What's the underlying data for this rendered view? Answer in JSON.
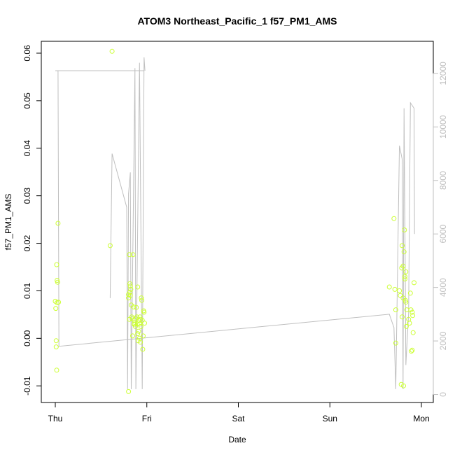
{
  "chart_data": {
    "type": "scatter",
    "title": "ATOM3 Northeast_Pacific_1 f57_PM1_AMS",
    "xlabel": "Date",
    "ylabel": "f57_PM1_AMS",
    "x_ticks": [
      "Thu",
      "Fri",
      "Sat",
      "Sun",
      "Mon"
    ],
    "xlim_days": [
      -0.2,
      4.1
    ],
    "ylim": [
      -0.0135,
      0.0625
    ],
    "y_ticks": [
      "-0.01",
      "0.00",
      "0.01",
      "0.02",
      "0.03",
      "0.04",
      "0.05",
      "0.06"
    ],
    "y_tick_values": [
      -0.01,
      0.0,
      0.01,
      0.02,
      0.03,
      0.04,
      0.05,
      0.06
    ],
    "y2lim": [
      -300,
      13200
    ],
    "y2_ticks": [
      "0",
      "2000",
      "4000",
      "6000",
      "8000",
      "10000",
      "12000"
    ],
    "y2_tick_values": [
      0,
      2000,
      4000,
      6000,
      8000,
      10000,
      12000
    ],
    "points_color": "#ccff33",
    "line_color": "#bfbfbf",
    "points": [
      [
        0.0,
        0.0078
      ],
      [
        0.005,
        0.0063
      ],
      [
        0.01,
        -0.0005
      ],
      [
        0.01,
        -0.0018
      ],
      [
        0.015,
        0.0155
      ],
      [
        0.02,
        0.0075
      ],
      [
        0.02,
        0.0122
      ],
      [
        0.025,
        0.0118
      ],
      [
        0.03,
        0.0242
      ],
      [
        0.035,
        0.0076
      ],
      [
        0.015,
        -0.0067
      ],
      [
        0.6,
        0.0195
      ],
      [
        0.62,
        0.0604
      ],
      [
        0.8,
        0.0092
      ],
      [
        0.8,
        0.0085
      ],
      [
        0.81,
        0.0176
      ],
      [
        0.81,
        0.004
      ],
      [
        0.815,
        0.0115
      ],
      [
        0.815,
        0.0097
      ],
      [
        0.82,
        0.009
      ],
      [
        0.82,
        0.011
      ],
      [
        0.825,
        0.0103
      ],
      [
        0.83,
        0.007
      ],
      [
        0.835,
        0.0045
      ],
      [
        0.84,
        0.0041
      ],
      [
        0.845,
        0.0005
      ],
      [
        0.85,
        0.0176
      ],
      [
        0.855,
        0.0066
      ],
      [
        0.86,
        0.003
      ],
      [
        0.865,
        0.0038
      ],
      [
        0.87,
        0.003
      ],
      [
        0.875,
        0.0025
      ],
      [
        0.88,
        0.0041
      ],
      [
        0.885,
        0.0065
      ],
      [
        0.89,
        0.0045
      ],
      [
        0.895,
        0.003
      ],
      [
        0.9,
        0.0108
      ],
      [
        0.905,
        -0.0005
      ],
      [
        0.91,
        0.0015
      ],
      [
        0.915,
        0.0038
      ],
      [
        0.92,
        0.003
      ],
      [
        0.925,
        0.0045
      ],
      [
        0.93,
        0.004
      ],
      [
        0.935,
        0.0025
      ],
      [
        0.94,
        0.0085
      ],
      [
        0.945,
        0.008
      ],
      [
        0.95,
        0.0038
      ],
      [
        0.955,
        -0.0023
      ],
      [
        0.96,
        0.0005
      ],
      [
        0.965,
        0.0058
      ],
      [
        0.97,
        0.0055
      ],
      [
        0.975,
        0.0032
      ],
      [
        0.9,
        0.001
      ],
      [
        0.92,
        0.0
      ],
      [
        0.93,
        -0.0008
      ],
      [
        0.8,
        -0.0112
      ],
      [
        3.65,
        0.0108
      ],
      [
        3.7,
        0.0252
      ],
      [
        3.71,
        0.0103
      ],
      [
        3.72,
        0.006
      ],
      [
        3.72,
        -0.001
      ],
      [
        3.76,
        0.01
      ],
      [
        3.77,
        0.009
      ],
      [
        3.78,
        -0.0097
      ],
      [
        3.785,
        0.0148
      ],
      [
        3.79,
        0.0195
      ],
      [
        3.79,
        0.0045
      ],
      [
        3.8,
        0.0152
      ],
      [
        3.8,
        0.0085
      ],
      [
        3.805,
        -0.01
      ],
      [
        3.81,
        0.0182
      ],
      [
        3.815,
        0.0228
      ],
      [
        3.82,
        0.013
      ],
      [
        3.82,
        0.0125
      ],
      [
        3.825,
        0.008
      ],
      [
        3.83,
        0.014
      ],
      [
        3.83,
        0.0076
      ],
      [
        3.835,
        0.0025
      ],
      [
        3.84,
        0.006
      ],
      [
        3.86,
        0.004
      ],
      [
        3.87,
        0.0032
      ],
      [
        3.88,
        0.0095
      ],
      [
        3.885,
        0.006
      ],
      [
        3.89,
        -0.0027
      ],
      [
        3.9,
        -0.0025
      ],
      [
        3.9,
        0.0055
      ],
      [
        3.905,
        0.0048
      ],
      [
        3.91,
        0.0012
      ],
      [
        3.92,
        0.0117
      ]
    ],
    "line": [
      [
        0.0,
        12100
      ],
      [
        0.03,
        12100
      ],
      [
        0.04,
        1800
      ],
      [
        3.65,
        3000
      ],
      [
        3.7,
        2500
      ],
      [
        3.72,
        200
      ],
      [
        3.76,
        9300
      ],
      [
        3.79,
        8800
      ],
      [
        3.8,
        200
      ],
      [
        3.81,
        10700
      ],
      [
        3.825,
        4000
      ],
      [
        3.83,
        1100
      ],
      [
        3.86,
        3000
      ],
      [
        3.88,
        10900
      ],
      [
        3.92,
        10700
      ],
      [
        3.925,
        6000
      ]
    ],
    "line_segments": [
      [
        [
          0.0,
          12100
        ],
        [
          0.03,
          12100
        ],
        [
          0.04,
          1800
        ],
        [
          3.65,
          3000
        ],
        [
          3.7,
          2500
        ],
        [
          3.72,
          200
        ],
        [
          3.76,
          9300
        ],
        [
          3.79,
          8800
        ],
        [
          3.8,
          200
        ],
        [
          3.81,
          10700
        ],
        [
          3.825,
          4000
        ],
        [
          3.83,
          1100
        ],
        [
          3.86,
          3000
        ],
        [
          3.88,
          10900
        ],
        [
          3.92,
          10700
        ],
        [
          3.925,
          6000
        ]
      ],
      [
        [
          0.03,
          12100
        ],
        [
          0.97,
          12100
        ]
      ],
      [
        [
          0.6,
          3600
        ],
        [
          0.62,
          9000
        ],
        [
          0.78,
          7000
        ],
        [
          0.79,
          200
        ],
        [
          0.8,
          7500
        ],
        [
          0.82,
          8300
        ],
        [
          0.83,
          200
        ],
        [
          0.87,
          12200
        ],
        [
          0.88,
          200
        ],
        [
          0.92,
          12400
        ],
        [
          0.95,
          200
        ],
        [
          0.97,
          12600
        ],
        [
          0.98,
          12100
        ]
      ]
    ]
  }
}
